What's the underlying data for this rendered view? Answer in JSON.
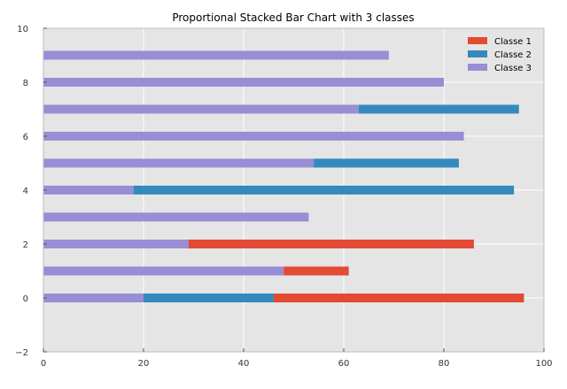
{
  "chart_data": {
    "type": "bar",
    "orientation": "horizontal",
    "stacked": true,
    "title": "Proportional Stacked Bar Chart with 3 classes",
    "xlabel": "",
    "ylabel": "",
    "xlim": [
      0,
      100
    ],
    "ylim": [
      -2,
      10
    ],
    "xticks": [
      0,
      20,
      40,
      60,
      80,
      100
    ],
    "yticks": [
      -2,
      0,
      2,
      4,
      6,
      8,
      10
    ],
    "grid": true,
    "legend_position": "top-right",
    "y": [
      0,
      1,
      2,
      3,
      4,
      5,
      6,
      7,
      8,
      9
    ],
    "series": [
      {
        "name": "Classe 3",
        "color": "#988ED5",
        "values": [
          20,
          48,
          29,
          53,
          18,
          54,
          84,
          63,
          80,
          69
        ]
      },
      {
        "name": "Classe 2",
        "color": "#348ABD",
        "values": [
          26,
          0,
          0,
          0,
          76,
          29,
          0,
          32,
          0,
          0
        ]
      },
      {
        "name": "Classe 1",
        "color": "#E24A33",
        "values": [
          50,
          13,
          57,
          0,
          0,
          0,
          0,
          0,
          0,
          0
        ]
      }
    ],
    "legend_order": [
      "Classe 1",
      "Classe 2",
      "Classe 3"
    ]
  }
}
